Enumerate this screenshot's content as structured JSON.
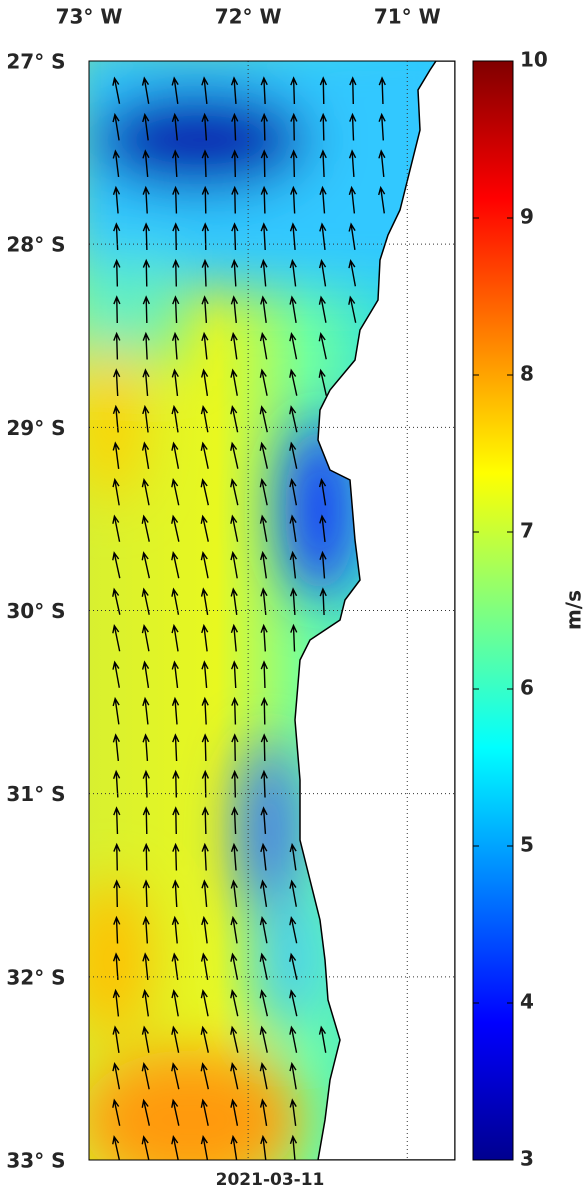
{
  "map": {
    "date": "2021-03-11",
    "xlim": [
      -73,
      -70.7
    ],
    "ylim": [
      -33,
      -27
    ],
    "xticks": [
      {
        "value": -73,
        "label": "73° W"
      },
      {
        "value": -72,
        "label": "72° W"
      },
      {
        "value": -71,
        "label": "71° W"
      }
    ],
    "yticks": [
      {
        "value": -27,
        "label": "27° S"
      },
      {
        "value": -28,
        "label": "28° S"
      },
      {
        "value": -29,
        "label": "29° S"
      },
      {
        "value": -30,
        "label": "30° S"
      },
      {
        "value": -31,
        "label": "31° S"
      },
      {
        "value": -32,
        "label": "32° S"
      },
      {
        "value": -33,
        "label": "33° S"
      }
    ],
    "colorbar": {
      "label": "m/s",
      "clim": [
        3,
        10
      ],
      "ticks": [
        3,
        4,
        5,
        6,
        7,
        8,
        9,
        10
      ]
    }
  }
}
